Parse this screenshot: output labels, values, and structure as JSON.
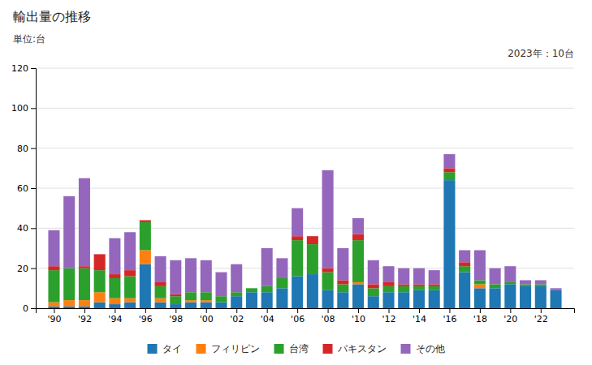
{
  "chart_data": {
    "type": "bar",
    "stacked": true,
    "title": "輸出量の推移",
    "ylabel": "単位:台",
    "annotation": "2023年：10台",
    "x": [
      1990,
      1991,
      1992,
      1993,
      1994,
      1995,
      1996,
      1997,
      1998,
      1999,
      2000,
      2001,
      2002,
      2003,
      2004,
      2005,
      2006,
      2007,
      2008,
      2009,
      2010,
      2011,
      2012,
      2013,
      2014,
      2015,
      2016,
      2017,
      2018,
      2019,
      2020,
      2021,
      2022,
      2023
    ],
    "series": [
      {
        "name": "タイ",
        "values": [
          1,
          1,
          1,
          3,
          2,
          3,
          22,
          3,
          2,
          3,
          3,
          3,
          6,
          8,
          8,
          10,
          16,
          17,
          9,
          8,
          12,
          6,
          8,
          8,
          9,
          9,
          64,
          18,
          10,
          10,
          12,
          11,
          11,
          9
        ]
      },
      {
        "name": "フィリピン",
        "values": [
          2,
          3,
          3,
          5,
          3,
          2,
          7,
          2,
          0,
          1,
          1,
          0,
          0,
          0,
          0,
          0,
          0,
          0,
          0,
          0,
          1,
          0,
          0,
          0,
          0,
          0,
          0,
          0,
          2,
          0,
          0,
          0,
          0,
          0
        ]
      },
      {
        "name": "台湾",
        "values": [
          16,
          16,
          16,
          11,
          10,
          11,
          14,
          6,
          4,
          4,
          4,
          3,
          2,
          2,
          3,
          5,
          18,
          15,
          9,
          4,
          21,
          4,
          3,
          3,
          2,
          2,
          4,
          3,
          2,
          2,
          1,
          1,
          1,
          0
        ]
      },
      {
        "name": "パキスタン",
        "values": [
          2,
          0,
          1,
          8,
          2,
          3,
          1,
          2,
          1,
          0,
          0,
          0,
          0,
          0,
          0,
          0,
          2,
          4,
          2,
          2,
          3,
          2,
          2,
          1,
          1,
          1,
          2,
          2,
          0,
          0,
          0,
          0,
          0,
          0
        ]
      },
      {
        "name": "その他",
        "values": [
          18,
          36,
          44,
          0,
          18,
          19,
          0,
          13,
          17,
          17,
          16,
          12,
          14,
          0,
          19,
          10,
          14,
          0,
          49,
          16,
          8,
          12,
          8,
          8,
          8,
          7,
          7,
          6,
          15,
          8,
          8,
          2,
          2,
          1
        ]
      }
    ],
    "xlim": [
      1988.8,
      2024.2
    ],
    "xticks": [
      {
        "value": 1990,
        "label": "'90"
      },
      {
        "value": 1992,
        "label": "'92"
      },
      {
        "value": 1994,
        "label": "'94"
      },
      {
        "value": 1996,
        "label": "'96"
      },
      {
        "value": 1998,
        "label": "'98"
      },
      {
        "value": 2000,
        "label": "'00"
      },
      {
        "value": 2002,
        "label": "'02"
      },
      {
        "value": 2004,
        "label": "'04"
      },
      {
        "value": 2006,
        "label": "'06"
      },
      {
        "value": 2008,
        "label": "'08"
      },
      {
        "value": 2010,
        "label": "'10"
      },
      {
        "value": 2012,
        "label": "'12"
      },
      {
        "value": 2014,
        "label": "'14"
      },
      {
        "value": 2016,
        "label": "'16"
      },
      {
        "value": 2018,
        "label": "'18"
      },
      {
        "value": 2020,
        "label": "'20"
      },
      {
        "value": 2022,
        "label": "'22"
      }
    ],
    "ylim": [
      0,
      120
    ],
    "yticks": [
      0,
      20,
      40,
      60,
      80,
      100,
      120
    ],
    "grid": true,
    "legend": "bottom"
  }
}
